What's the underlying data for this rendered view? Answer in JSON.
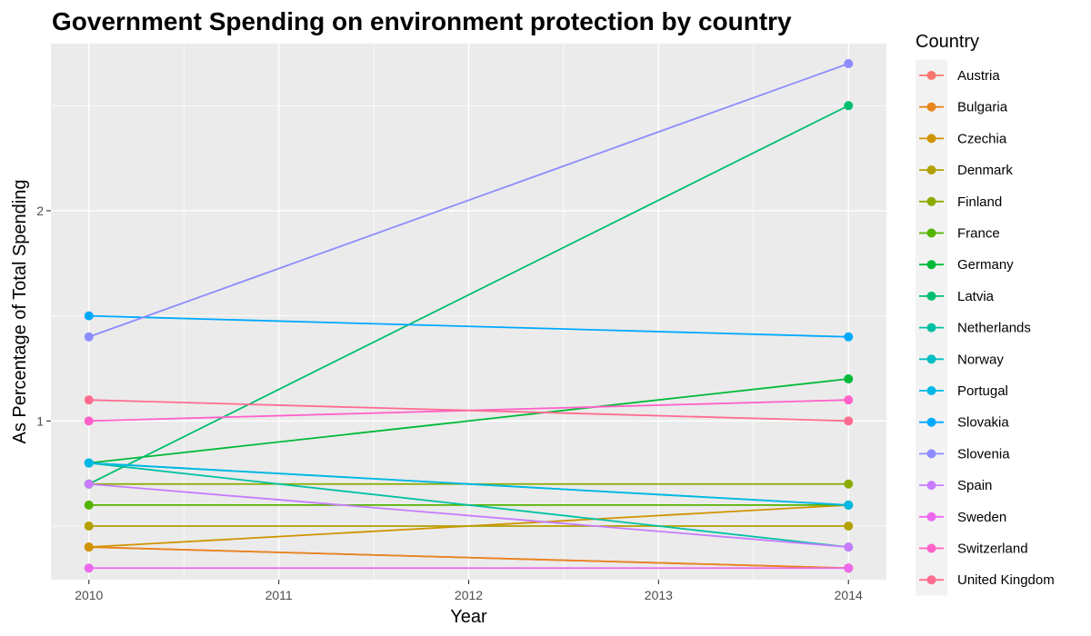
{
  "chart_data": {
    "type": "line",
    "title": "Government Spending on environment protection by country",
    "xlabel": "Year",
    "ylabel": "As Percentage of Total Spending",
    "x": [
      2010,
      2014
    ],
    "x_ticks": [
      2010,
      2011,
      2012,
      2013,
      2014
    ],
    "y_ticks": [
      1,
      2
    ],
    "xlim": [
      2009.8,
      2014.2
    ],
    "ylim": [
      0.245,
      2.795
    ],
    "grid": true,
    "legend": {
      "title": "Country",
      "placement": "right"
    },
    "series": [
      {
        "name": "Austria",
        "color": "#F8766D",
        "values": [
          0.4,
          0.3
        ]
      },
      {
        "name": "Bulgaria",
        "color": "#E7851E",
        "values": [
          0.4,
          0.3
        ]
      },
      {
        "name": "Czechia",
        "color": "#D09400",
        "values": [
          0.4,
          0.6
        ]
      },
      {
        "name": "Denmark",
        "color": "#B2A100",
        "values": [
          0.5,
          0.5
        ]
      },
      {
        "name": "Finland",
        "color": "#8BAB00",
        "values": [
          0.7,
          0.7
        ]
      },
      {
        "name": "France",
        "color": "#55B400",
        "values": [
          0.6,
          0.6
        ]
      },
      {
        "name": "Germany",
        "color": "#00BA38",
        "values": [
          0.8,
          1.2
        ]
      },
      {
        "name": "Latvia",
        "color": "#00BE70",
        "values": [
          0.7,
          2.5
        ]
      },
      {
        "name": "Netherlands",
        "color": "#00C1A3",
        "values": [
          0.8,
          0.4
        ]
      },
      {
        "name": "Norway",
        "color": "#00BFC4",
        "values": [
          0.8,
          0.6
        ]
      },
      {
        "name": "Portugal",
        "color": "#00B8E5",
        "values": [
          0.8,
          0.6
        ]
      },
      {
        "name": "Slovakia",
        "color": "#00A9FF",
        "values": [
          1.5,
          1.4
        ]
      },
      {
        "name": "Slovenia",
        "color": "#8C8CFF",
        "values": [
          1.4,
          2.7
        ]
      },
      {
        "name": "Spain",
        "color": "#C77CFF",
        "values": [
          0.7,
          0.4
        ]
      },
      {
        "name": "Sweden",
        "color": "#ED68ED",
        "values": [
          0.3,
          0.3
        ]
      },
      {
        "name": "Switzerland",
        "color": "#FF61C9",
        "values": [
          1.0,
          1.1
        ]
      },
      {
        "name": "United Kingdom",
        "color": "#FF6C91",
        "values": [
          1.1,
          1.0
        ]
      }
    ]
  }
}
